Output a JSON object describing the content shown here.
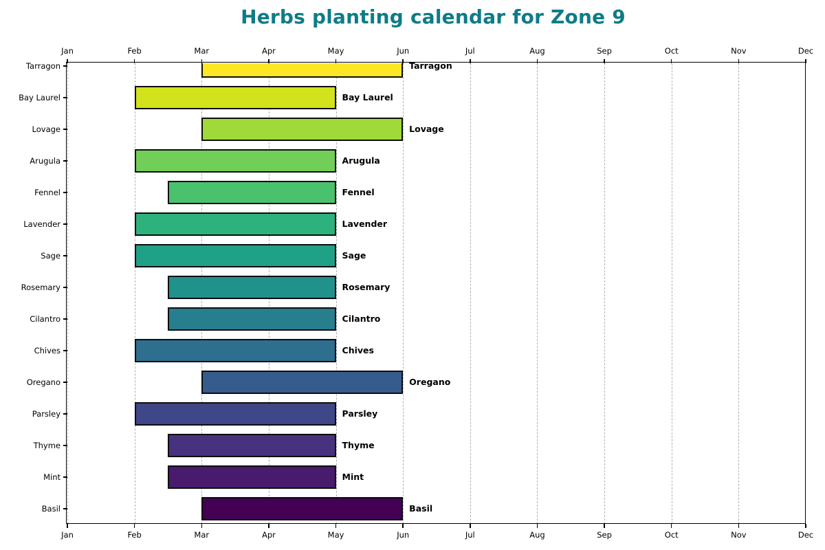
{
  "chart_data": {
    "type": "bar",
    "subtype": "gantt-planting-calendar",
    "title": "Herbs planting calendar for Zone 9",
    "title_color": "#0e7c86",
    "x_axis": {
      "tick_labels": [
        "Jan",
        "Feb",
        "Mar",
        "Apr",
        "May",
        "Jun",
        "Jul",
        "Aug",
        "Sep",
        "Oct",
        "Nov",
        "Dec"
      ],
      "labels_shown_on": [
        "top",
        "bottom"
      ],
      "gridlines": "vertical-dashed",
      "grid_color": "#b0b0b0",
      "range_note": "x positions are month indices, 0 = Jan, 0.5 = mid-month"
    },
    "y_axis": {
      "tick_labels": [
        "Tarragon",
        "Bay Laurel",
        "Lovage",
        "Arugula",
        "Fennel",
        "Lavender",
        "Sage",
        "Rosemary",
        "Cilantro",
        "Chives",
        "Oregano",
        "Parsley",
        "Thyme",
        "Mint",
        "Basil"
      ],
      "side": "left"
    },
    "bar_edge_color": "#0d0d0d",
    "bars": [
      {
        "name": "Tarragon",
        "start": 2,
        "end": 5,
        "start_month": "Mar",
        "end_month": "Jun",
        "color": "#fde725"
      },
      {
        "name": "Bay Laurel",
        "start": 1,
        "end": 4,
        "start_month": "Feb",
        "end_month": "May",
        "color": "#d2e21b"
      },
      {
        "name": "Lovage",
        "start": 2,
        "end": 5,
        "start_month": "Mar",
        "end_month": "Jun",
        "color": "#9fda3a"
      },
      {
        "name": "Arugula",
        "start": 1,
        "end": 4,
        "start_month": "Feb",
        "end_month": "May",
        "color": "#71cf57"
      },
      {
        "name": "Fennel",
        "start": 1.5,
        "end": 4,
        "start_month": "mid-Feb",
        "end_month": "May",
        "color": "#4ac16d"
      },
      {
        "name": "Lavender",
        "start": 1,
        "end": 4,
        "start_month": "Feb",
        "end_month": "May",
        "color": "#2db27d"
      },
      {
        "name": "Sage",
        "start": 1,
        "end": 4,
        "start_month": "Feb",
        "end_month": "May",
        "color": "#1fa187"
      },
      {
        "name": "Rosemary",
        "start": 1.5,
        "end": 4,
        "start_month": "mid-Feb",
        "end_month": "May",
        "color": "#21918c"
      },
      {
        "name": "Cilantro",
        "start": 1.5,
        "end": 4,
        "start_month": "mid-Feb",
        "end_month": "May",
        "color": "#277f8e"
      },
      {
        "name": "Chives",
        "start": 1,
        "end": 4,
        "start_month": "Feb",
        "end_month": "May",
        "color": "#2e6e8e"
      },
      {
        "name": "Oregano",
        "start": 2,
        "end": 5,
        "start_month": "Mar",
        "end_month": "Jun",
        "color": "#365c8d"
      },
      {
        "name": "Parsley",
        "start": 1,
        "end": 4,
        "start_month": "Feb",
        "end_month": "May",
        "color": "#3f4788"
      },
      {
        "name": "Thyme",
        "start": 1.5,
        "end": 4,
        "start_month": "mid-Feb",
        "end_month": "May",
        "color": "#46327e"
      },
      {
        "name": "Mint",
        "start": 1.5,
        "end": 4,
        "start_month": "mid-Feb",
        "end_month": "May",
        "color": "#481b6d"
      },
      {
        "name": "Basil",
        "start": 2,
        "end": 5,
        "start_month": "Mar",
        "end_month": "Jun",
        "color": "#440154"
      }
    ],
    "legend": "none"
  }
}
